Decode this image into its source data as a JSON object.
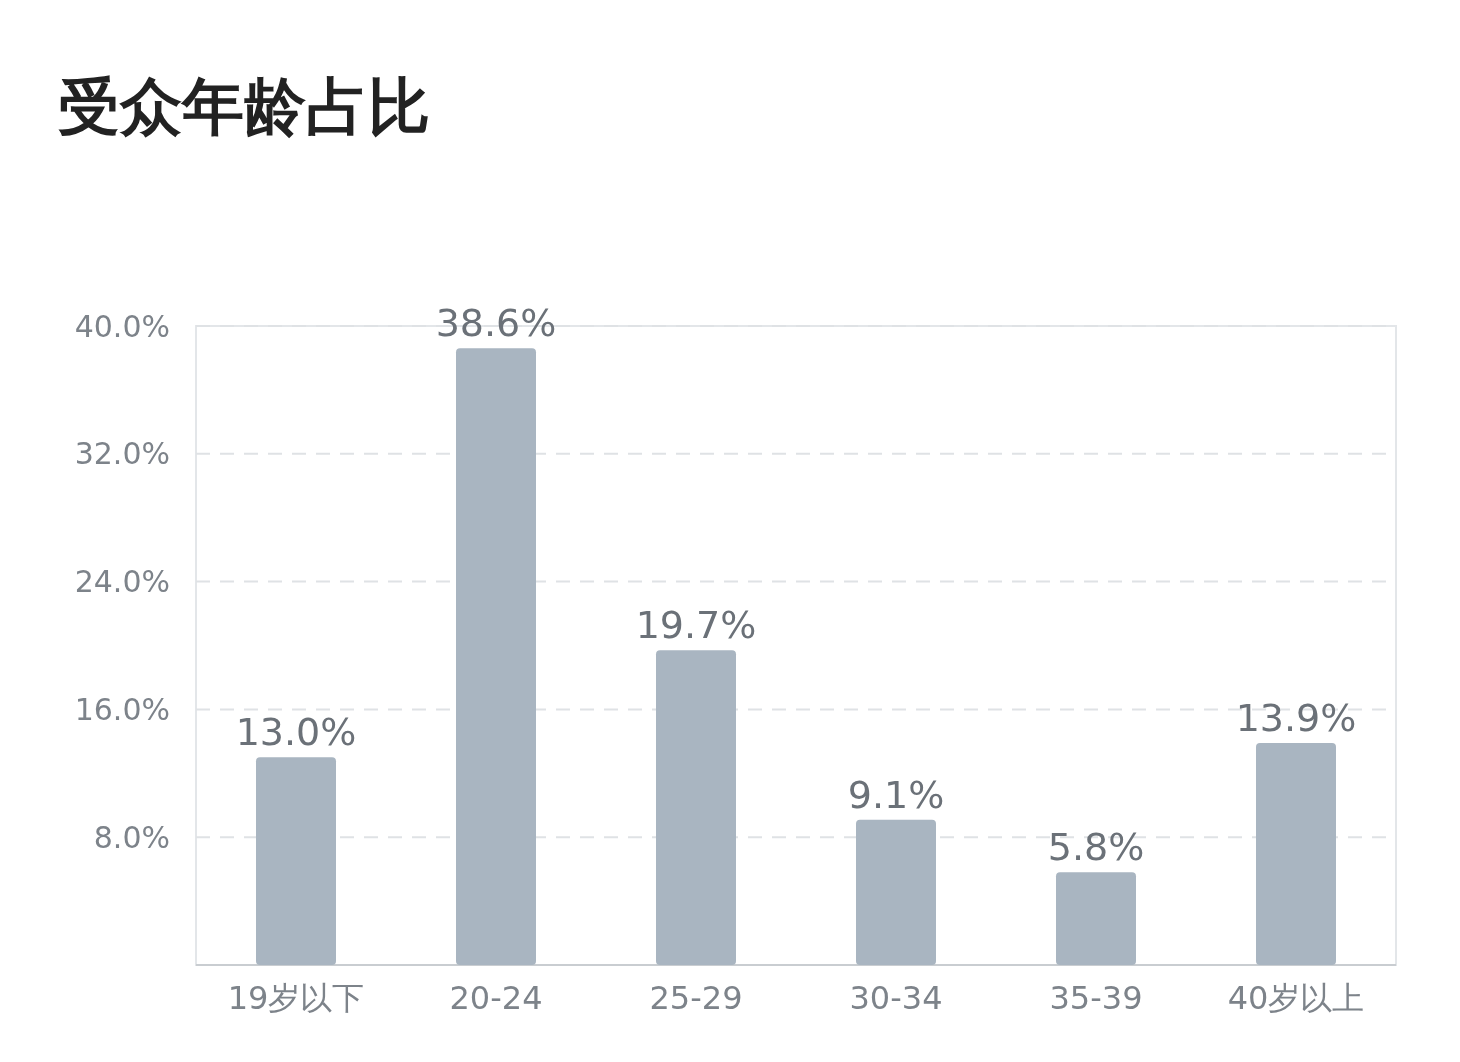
{
  "chart_data": {
    "type": "bar",
    "title": "受众年龄占比",
    "categories": [
      "19岁以下",
      "20-24",
      "25-29",
      "30-34",
      "35-39",
      "40岁以上"
    ],
    "values": [
      13.0,
      38.6,
      19.7,
      9.1,
      5.8,
      13.9
    ],
    "value_labels": [
      "13.0%",
      "38.6%",
      "19.7%",
      "9.1%",
      "5.8%",
      "13.9%"
    ],
    "color": "#a9b5c1",
    "ylim": [
      0,
      40
    ],
    "yticks": [
      {
        "value": 8,
        "label": "8.0%"
      },
      {
        "value": 16,
        "label": "16.0%"
      },
      {
        "value": 24,
        "label": "24.0%"
      },
      {
        "value": 32,
        "label": "32.0%"
      },
      {
        "value": 40,
        "label": "40.0%"
      }
    ],
    "grid": "y"
  }
}
